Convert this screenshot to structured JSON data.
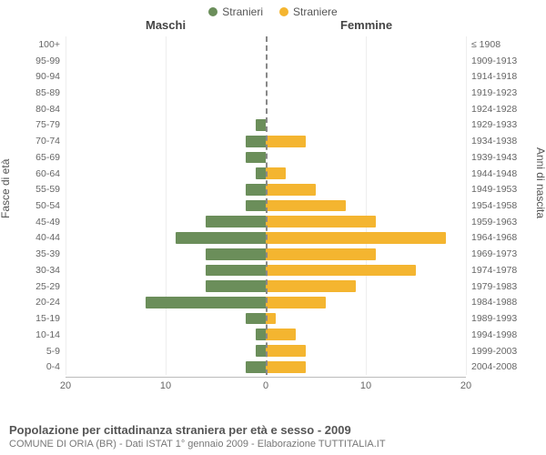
{
  "chart": {
    "type": "population-pyramid",
    "legend": [
      {
        "label": "Stranieri",
        "color": "#6b8e5a"
      },
      {
        "label": "Straniere",
        "color": "#f4b530"
      }
    ],
    "header_male": "Maschi",
    "header_female": "Femmine",
    "ylabel_left": "Fasce di età",
    "ylabel_right": "Anni di nascita",
    "x_max": 20,
    "x_ticks": [
      20,
      10,
      0,
      10,
      20
    ],
    "male_color": "#6b8e5a",
    "female_color": "#f4b530",
    "background_color": "#ffffff",
    "grid_color": "#eeeeee",
    "axis_color": "#bbbbbb",
    "zero_line_color": "#888888",
    "bar_height_ratio": 0.72,
    "label_fontsize": 10.5,
    "tick_fontsize": 11,
    "rows": [
      {
        "age": "100+",
        "birth": "≤ 1908",
        "m": 0,
        "f": 0
      },
      {
        "age": "95-99",
        "birth": "1909-1913",
        "m": 0,
        "f": 0
      },
      {
        "age": "90-94",
        "birth": "1914-1918",
        "m": 0,
        "f": 0
      },
      {
        "age": "85-89",
        "birth": "1919-1923",
        "m": 0,
        "f": 0
      },
      {
        "age": "80-84",
        "birth": "1924-1928",
        "m": 0,
        "f": 0
      },
      {
        "age": "75-79",
        "birth": "1929-1933",
        "m": 1,
        "f": 0
      },
      {
        "age": "70-74",
        "birth": "1934-1938",
        "m": 2,
        "f": 4
      },
      {
        "age": "65-69",
        "birth": "1939-1943",
        "m": 2,
        "f": 0
      },
      {
        "age": "60-64",
        "birth": "1944-1948",
        "m": 1,
        "f": 2
      },
      {
        "age": "55-59",
        "birth": "1949-1953",
        "m": 2,
        "f": 5
      },
      {
        "age": "50-54",
        "birth": "1954-1958",
        "m": 2,
        "f": 8
      },
      {
        "age": "45-49",
        "birth": "1959-1963",
        "m": 6,
        "f": 11
      },
      {
        "age": "40-44",
        "birth": "1964-1968",
        "m": 9,
        "f": 18
      },
      {
        "age": "35-39",
        "birth": "1969-1973",
        "m": 6,
        "f": 11
      },
      {
        "age": "30-34",
        "birth": "1974-1978",
        "m": 6,
        "f": 15
      },
      {
        "age": "25-29",
        "birth": "1979-1983",
        "m": 6,
        "f": 9
      },
      {
        "age": "20-24",
        "birth": "1984-1988",
        "m": 12,
        "f": 6
      },
      {
        "age": "15-19",
        "birth": "1989-1993",
        "m": 2,
        "f": 1
      },
      {
        "age": "10-14",
        "birth": "1994-1998",
        "m": 1,
        "f": 3
      },
      {
        "age": "5-9",
        "birth": "1999-2003",
        "m": 1,
        "f": 4
      },
      {
        "age": "0-4",
        "birth": "2004-2008",
        "m": 2,
        "f": 4
      }
    ]
  },
  "caption": {
    "title": "Popolazione per cittadinanza straniera per età e sesso - 2009",
    "subtitle": "COMUNE DI ORIA (BR) - Dati ISTAT 1° gennaio 2009 - Elaborazione TUTTITALIA.IT"
  }
}
